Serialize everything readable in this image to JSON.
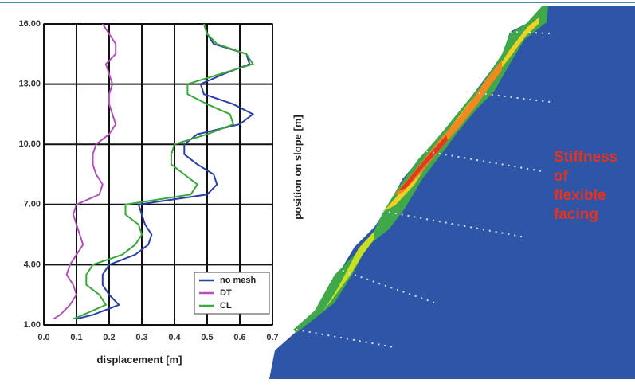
{
  "chart_data": {
    "type": "line",
    "xlabel": "displacement [m]",
    "ylabel": "position on slope [m]",
    "xlim": [
      0,
      0.7
    ],
    "xticks": [
      {
        "value": 0,
        "label": "0.0"
      },
      0.1,
      0.2,
      0.3,
      0.4,
      0.5,
      0.6,
      0.7
    ],
    "ylim": [
      1,
      16
    ],
    "yticks": [
      {
        "value": 1,
        "label": "1.00"
      },
      {
        "value": 4,
        "label": "4.00"
      },
      {
        "value": 7,
        "label": "7.00"
      },
      {
        "value": 10,
        "label": "10.00"
      },
      {
        "value": 13,
        "label": "13.00"
      },
      {
        "value": 16,
        "label": "16.00"
      }
    ],
    "grid": true,
    "legend": "lower right",
    "y": [
      1.3,
      1.5,
      2,
      2.5,
      3,
      3.5,
      4,
      4.5,
      5,
      5.5,
      6,
      6.5,
      7,
      7.5,
      8,
      8.5,
      9,
      9.5,
      10,
      10.5,
      11,
      11.5,
      12,
      12.5,
      13,
      13.5,
      14,
      14.5,
      15,
      15.5,
      16
    ],
    "series": [
      {
        "name": "no mesh",
        "color": "#2a3ea8",
        "values": [
          0.1,
          0.15,
          0.23,
          0.2,
          0.18,
          0.18,
          0.2,
          0.28,
          0.32,
          0.33,
          0.31,
          0.3,
          0.29,
          0.5,
          0.53,
          0.52,
          0.47,
          0.43,
          0.43,
          0.47,
          0.6,
          0.64,
          0.58,
          0.49,
          0.48,
          0.55,
          0.63,
          0.62,
          0.52,
          0.5,
          0.49
        ]
      },
      {
        "name": "DT",
        "color": "#b050b8",
        "values": [
          0.03,
          0.05,
          0.08,
          0.1,
          0.09,
          0.07,
          0.08,
          0.1,
          0.12,
          0.11,
          0.1,
          0.09,
          0.1,
          0.17,
          0.18,
          0.16,
          0.15,
          0.15,
          0.16,
          0.2,
          0.22,
          0.21,
          0.2,
          0.2,
          0.21,
          0.2,
          0.19,
          0.22,
          0.22,
          0.2,
          0.18
        ]
      },
      {
        "name": "CL",
        "color": "#3aa83a",
        "values": [
          0.09,
          0.12,
          0.19,
          0.17,
          0.13,
          0.13,
          0.15,
          0.24,
          0.28,
          0.3,
          0.29,
          0.25,
          0.25,
          0.45,
          0.47,
          0.43,
          0.39,
          0.39,
          0.4,
          0.5,
          0.58,
          0.57,
          0.5,
          0.44,
          0.44,
          0.54,
          0.64,
          0.62,
          0.53,
          0.5,
          0.49
        ]
      }
    ],
    "annotation": [
      "Stiffness",
      "of",
      "flexible",
      "facing"
    ]
  }
}
